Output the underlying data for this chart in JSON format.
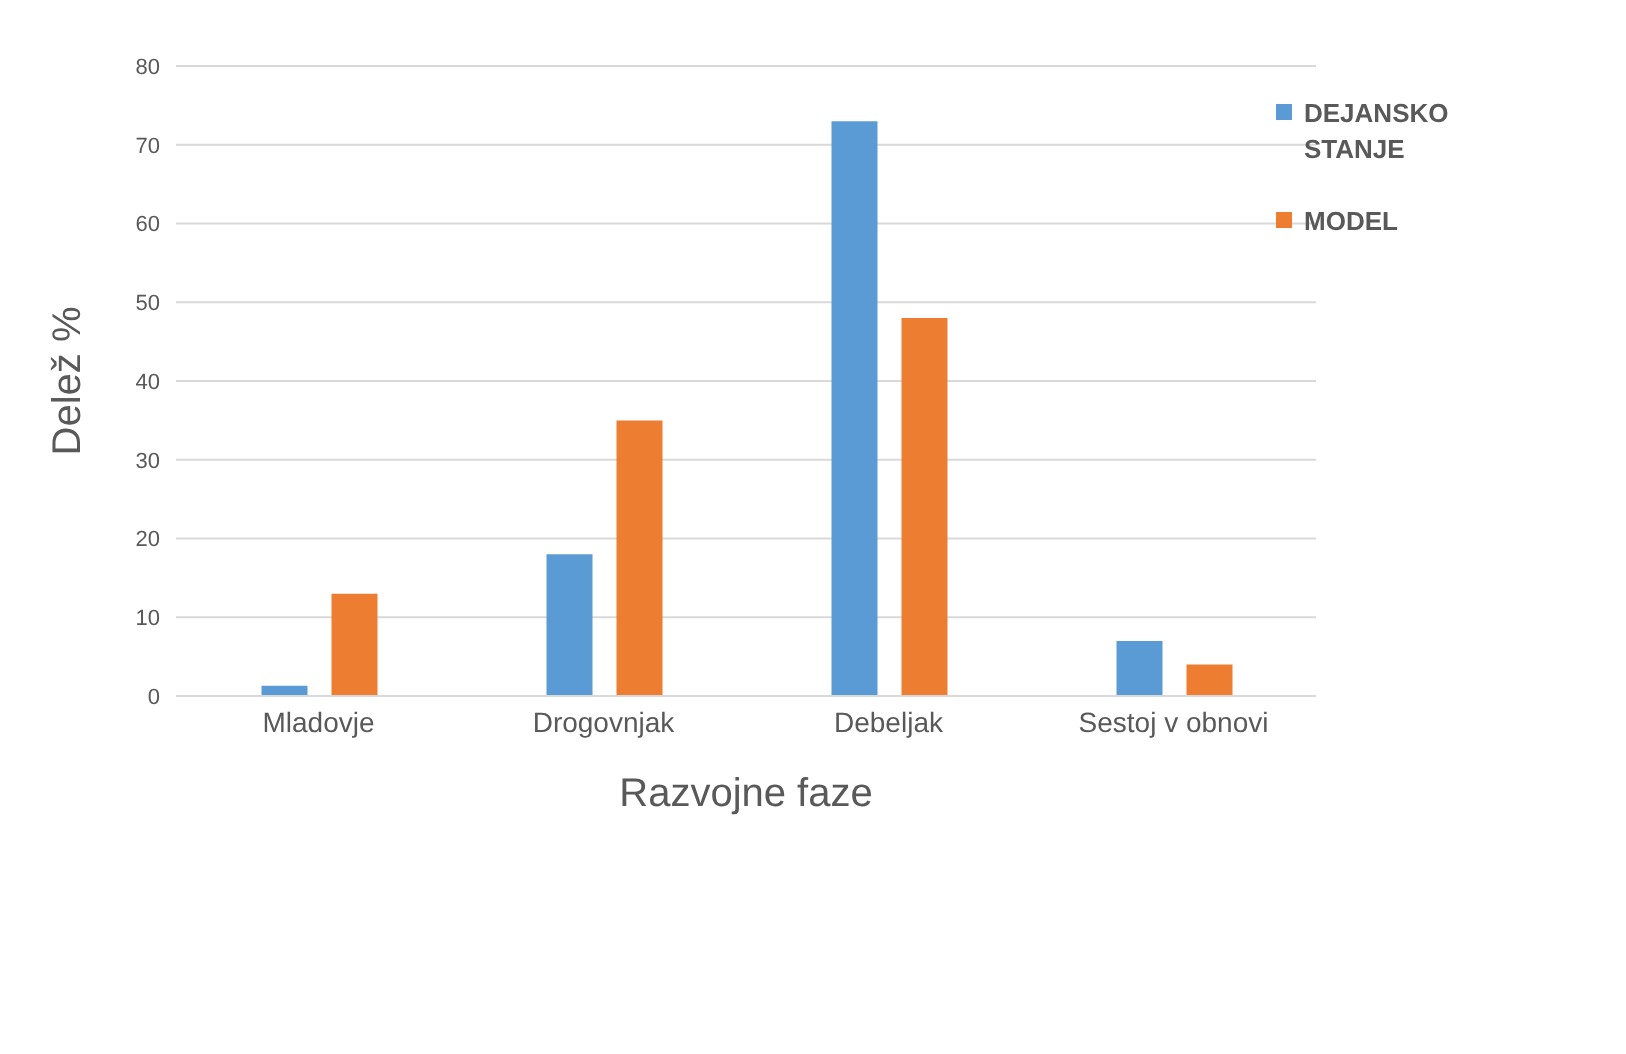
{
  "chart_data": {
    "type": "bar",
    "xlabel": "Razvojne faze",
    "ylabel": "Delež %",
    "categories": [
      "Mladovje",
      "Drogovnjak",
      "Debeljak",
      "Sestoj v obnovi"
    ],
    "series": [
      {
        "name": "DEJANSKO STANJE",
        "color": "#5b9bd5",
        "values": [
          1.3,
          18,
          73,
          7
        ]
      },
      {
        "name": "MODEL",
        "color": "#ed7d31",
        "values": [
          13,
          35,
          48,
          4
        ]
      }
    ],
    "ylim": [
      0,
      80
    ],
    "yticks": [
      0,
      10,
      20,
      30,
      40,
      50,
      60,
      70,
      80
    ],
    "grid": "y",
    "legend": "top right"
  }
}
